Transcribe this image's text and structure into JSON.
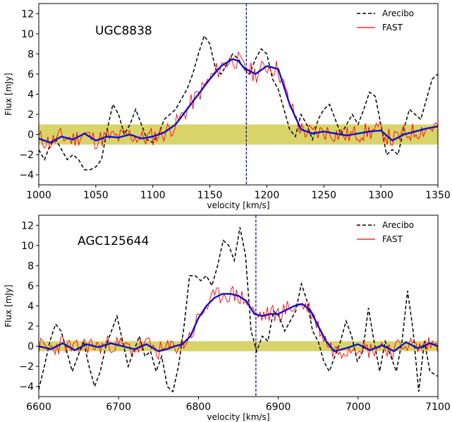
{
  "figure": {
    "colors": {
      "arecibo": "#000000",
      "fast": "#ff0000",
      "smooth": "#1010d0",
      "band": "#d8d46a",
      "marker": "#0000cc"
    }
  },
  "chart_data": [
    {
      "type": "line",
      "title": "UGC8838",
      "xlabel": "velocity [km/s]",
      "ylabel": "Flux [mJy]",
      "xlim": [
        1000,
        1350
      ],
      "ylim": [
        -5,
        13
      ],
      "xticks": [
        1000,
        1050,
        1100,
        1150,
        1200,
        1250,
        1300,
        1350
      ],
      "yticks": [
        -4,
        -2,
        0,
        2,
        4,
        6,
        8,
        10,
        12
      ],
      "legend": {
        "position": "top-right",
        "entries": [
          "Arecibo",
          "FAST"
        ]
      },
      "noise_band": [
        -1.0,
        1.0
      ],
      "marker_velocity": 1182,
      "series": [
        {
          "name": "Arecibo",
          "style": "dashed",
          "x": [
            1000,
            1005,
            1010,
            1015,
            1020,
            1025,
            1030,
            1035,
            1040,
            1045,
            1050,
            1055,
            1060,
            1065,
            1070,
            1075,
            1080,
            1085,
            1090,
            1095,
            1100,
            1105,
            1110,
            1115,
            1120,
            1125,
            1130,
            1135,
            1140,
            1145,
            1150,
            1155,
            1160,
            1165,
            1170,
            1175,
            1180,
            1185,
            1190,
            1195,
            1200,
            1205,
            1210,
            1215,
            1220,
            1225,
            1230,
            1235,
            1240,
            1245,
            1250,
            1255,
            1260,
            1265,
            1270,
            1275,
            1280,
            1285,
            1290,
            1295,
            1300,
            1305,
            1310,
            1315,
            1320,
            1325,
            1330,
            1335,
            1340,
            1345,
            1350
          ],
          "values": [
            -1.5,
            -2.5,
            -1.0,
            -0.5,
            -1.5,
            -2.5,
            -2.0,
            -2.5,
            -3.5,
            -3.5,
            -3.2,
            -2.5,
            0.5,
            3.0,
            2.0,
            0.0,
            1.0,
            2.5,
            1.0,
            -0.5,
            -0.8,
            0.0,
            1.5,
            2.0,
            2.5,
            3.5,
            4.5,
            6.0,
            8.0,
            9.8,
            9.0,
            6.5,
            6.0,
            7.0,
            8.0,
            7.5,
            6.5,
            6.0,
            7.5,
            8.5,
            8.0,
            5.5,
            4.5,
            2.5,
            0.5,
            -0.2,
            2.0,
            1.0,
            -0.5,
            1.5,
            2.5,
            3.0,
            1.5,
            0.0,
            1.0,
            2.0,
            1.0,
            2.5,
            4.2,
            3.8,
            1.0,
            -2.0,
            -1.5,
            -2.0,
            0.5,
            2.5,
            2.0,
            1.5,
            3.5,
            5.5,
            6.0
          ]
        },
        {
          "name": "FAST",
          "style": "solid",
          "x": [
            1000,
            1010,
            1020,
            1030,
            1040,
            1050,
            1060,
            1070,
            1080,
            1090,
            1100,
            1110,
            1120,
            1130,
            1140,
            1150,
            1160,
            1170,
            1175,
            1180,
            1190,
            1200,
            1210,
            1220,
            1230,
            1240,
            1250,
            1260,
            1270,
            1280,
            1290,
            1300,
            1310,
            1320,
            1330,
            1340,
            1350
          ],
          "values": [
            -0.4,
            -0.8,
            -0.2,
            -0.5,
            0.1,
            -0.6,
            -0.2,
            -0.3,
            0.0,
            -0.4,
            -0.2,
            0.2,
            1.0,
            2.5,
            4.0,
            5.5,
            6.8,
            7.5,
            7.3,
            6.6,
            6.0,
            6.8,
            6.5,
            3.0,
            0.5,
            0.1,
            0.3,
            0.1,
            -0.1,
            0.1,
            0.3,
            0.4,
            -0.6,
            0.0,
            0.3,
            0.6,
            0.8
          ]
        },
        {
          "name": "",
          "style": "smooth",
          "x": [
            1000,
            1010,
            1020,
            1030,
            1040,
            1050,
            1060,
            1070,
            1080,
            1090,
            1100,
            1110,
            1120,
            1130,
            1140,
            1150,
            1160,
            1170,
            1175,
            1180,
            1190,
            1200,
            1210,
            1220,
            1230,
            1240,
            1250,
            1260,
            1270,
            1280,
            1290,
            1300,
            1310,
            1320,
            1330,
            1340,
            1350
          ],
          "values": [
            -0.4,
            -0.8,
            -0.2,
            -0.5,
            0.1,
            -0.6,
            -0.2,
            -0.3,
            0.0,
            -0.4,
            -0.2,
            0.2,
            1.0,
            2.5,
            4.0,
            5.5,
            6.8,
            7.5,
            7.3,
            6.6,
            6.0,
            6.8,
            6.5,
            3.0,
            0.5,
            0.1,
            0.3,
            0.1,
            -0.1,
            0.1,
            0.3,
            0.4,
            -0.6,
            0.0,
            0.3,
            0.6,
            0.8
          ]
        }
      ]
    },
    {
      "type": "line",
      "title": "AGC125644",
      "xlabel": "velocity [km/s]",
      "ylabel": "Flux [mJy]",
      "xlim": [
        6600,
        7100
      ],
      "ylim": [
        -5,
        13
      ],
      "xticks": [
        6600,
        6700,
        6800,
        6900,
        7000,
        7100
      ],
      "yticks": [
        -4,
        -2,
        0,
        2,
        4,
        6,
        8,
        10,
        12
      ],
      "legend": {
        "position": "top-right",
        "entries": [
          "Arecibo",
          "FAST"
        ]
      },
      "noise_band": [
        -0.5,
        0.5
      ],
      "marker_velocity": 6872,
      "series": [
        {
          "name": "Arecibo",
          "style": "dashed",
          "x": [
            6600,
            6607,
            6614,
            6621,
            6628,
            6635,
            6642,
            6649,
            6656,
            6663,
            6670,
            6677,
            6684,
            6691,
            6698,
            6705,
            6712,
            6719,
            6726,
            6733,
            6740,
            6747,
            6754,
            6761,
            6768,
            6775,
            6782,
            6789,
            6796,
            6803,
            6810,
            6817,
            6824,
            6831,
            6838,
            6845,
            6852,
            6859,
            6866,
            6873,
            6880,
            6887,
            6894,
            6901,
            6908,
            6915,
            6922,
            6929,
            6936,
            6943,
            6950,
            6957,
            6964,
            6971,
            6978,
            6985,
            6992,
            6999,
            7006,
            7013,
            7020,
            7027,
            7034,
            7041,
            7048,
            7055,
            7062,
            7069,
            7076,
            7083,
            7090,
            7100
          ],
          "values": [
            -4.3,
            -2.0,
            0.5,
            2.2,
            1.5,
            -0.5,
            -2.5,
            -1.0,
            0.5,
            -2.0,
            -4.0,
            -2.5,
            0.0,
            1.5,
            3.0,
            0.5,
            -2.0,
            -0.5,
            1.0,
            -1.0,
            -0.5,
            -2.5,
            -1.0,
            -4.0,
            -4.5,
            -2.0,
            2.0,
            7.0,
            7.0,
            6.5,
            7.0,
            6.0,
            8.0,
            10.5,
            10.0,
            8.5,
            11.8,
            9.0,
            1.5,
            -0.5,
            1.0,
            0.5,
            3.5,
            3.0,
            1.5,
            2.5,
            3.5,
            6.2,
            4.5,
            1.5,
            0.5,
            -1.5,
            -2.5,
            -1.0,
            0.5,
            2.5,
            1.0,
            -1.5,
            -0.5,
            3.8,
            0.5,
            -2.5,
            0.5,
            -1.0,
            -2.5,
            0.5,
            5.5,
            1.5,
            -4.5,
            0.5,
            -2.5,
            -3.0
          ]
        },
        {
          "name": "FAST",
          "style": "solid",
          "x": [
            6600,
            6615,
            6630,
            6645,
            6660,
            6675,
            6690,
            6705,
            6720,
            6735,
            6750,
            6760,
            6770,
            6780,
            6790,
            6800,
            6810,
            6820,
            6830,
            6840,
            6850,
            6860,
            6870,
            6880,
            6890,
            6900,
            6910,
            6920,
            6930,
            6940,
            6950,
            6960,
            6970,
            6985,
            7000,
            7015,
            7030,
            7045,
            7060,
            7075,
            7090,
            7100
          ],
          "values": [
            0.0,
            -0.3,
            0.3,
            -0.4,
            0.2,
            -0.1,
            0.3,
            0.0,
            -0.3,
            0.2,
            -0.5,
            -0.3,
            0.0,
            0.2,
            1.0,
            2.8,
            4.0,
            4.8,
            5.2,
            5.2,
            5.0,
            4.5,
            3.2,
            3.0,
            3.2,
            3.2,
            3.6,
            4.0,
            4.2,
            3.6,
            2.0,
            0.5,
            -0.5,
            -0.2,
            0.2,
            -0.4,
            0.1,
            -0.5,
            0.4,
            -0.2,
            0.3,
            0.0
          ]
        },
        {
          "name": "",
          "style": "smooth",
          "x": [
            6600,
            6615,
            6630,
            6645,
            6660,
            6675,
            6690,
            6705,
            6720,
            6735,
            6750,
            6760,
            6770,
            6780,
            6790,
            6800,
            6810,
            6820,
            6830,
            6840,
            6850,
            6860,
            6870,
            6880,
            6890,
            6900,
            6910,
            6920,
            6930,
            6940,
            6950,
            6960,
            6970,
            6985,
            7000,
            7015,
            7030,
            7045,
            7060,
            7075,
            7090,
            7100
          ],
          "values": [
            0.0,
            -0.3,
            0.3,
            -0.4,
            0.2,
            -0.1,
            0.3,
            0.0,
            -0.3,
            0.2,
            -0.5,
            -0.3,
            0.0,
            0.2,
            1.0,
            2.8,
            4.0,
            4.8,
            5.2,
            5.2,
            5.0,
            4.5,
            3.2,
            3.0,
            3.2,
            3.2,
            3.6,
            4.0,
            4.2,
            3.6,
            2.0,
            0.5,
            -0.5,
            -0.2,
            0.2,
            -0.4,
            0.1,
            -0.5,
            0.4,
            -0.2,
            0.3,
            0.0
          ]
        }
      ]
    }
  ]
}
